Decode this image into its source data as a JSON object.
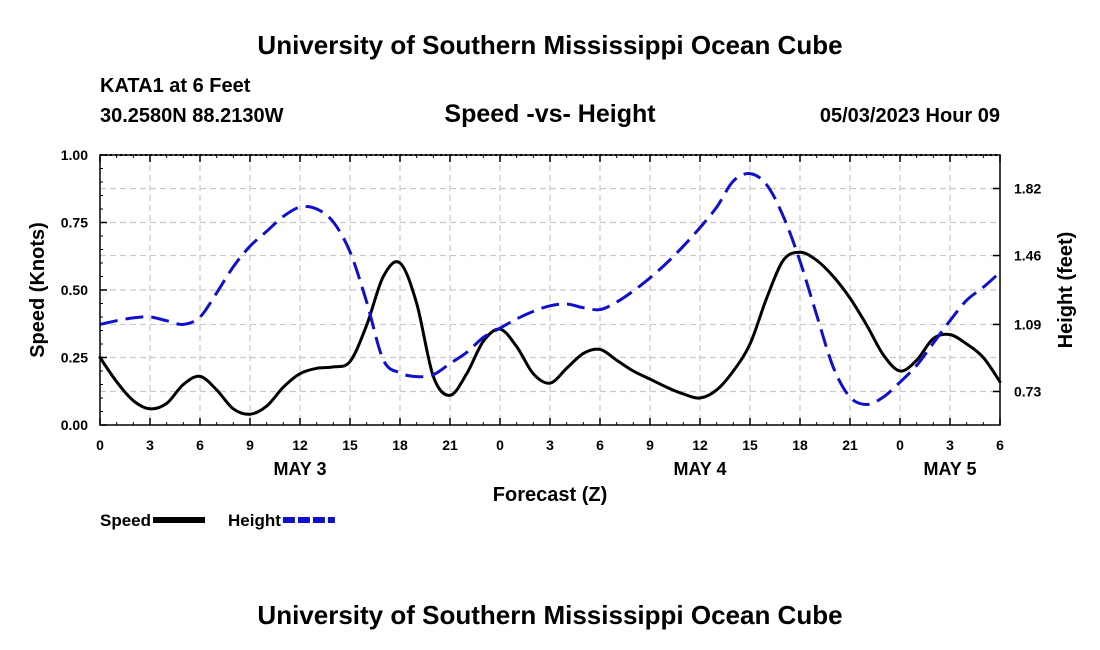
{
  "header": {
    "title": "University of Southern Mississippi Ocean Cube",
    "station": "KATA1 at 6 Feet",
    "coords": "30.2580N  88.2130W",
    "subtitle": "Speed -vs- Height",
    "datetime": "05/03/2023 Hour 09",
    "footer_title": "University of Southern Mississippi Ocean Cube"
  },
  "chart_data": {
    "type": "line",
    "title": "Speed -vs- Height",
    "xlabel": "Forecast (Z)",
    "ylabel": "Speed (Knots)",
    "y2label": "Height (feet)",
    "x_range": [
      0,
      54
    ],
    "ylim": [
      0,
      1
    ],
    "y2lim": [
      0.55,
      2.0
    ],
    "x_ticks": [
      0,
      3,
      6,
      9,
      12,
      15,
      18,
      21,
      24,
      27,
      30,
      33,
      36,
      39,
      42,
      45,
      48,
      51,
      54
    ],
    "x_tick_labels": [
      "0",
      "3",
      "6",
      "9",
      "12",
      "15",
      "18",
      "21",
      "0",
      "3",
      "6",
      "9",
      "12",
      "15",
      "18",
      "21",
      "0",
      "3",
      "6"
    ],
    "y_ticks": [
      0,
      0.25,
      0.5,
      0.75,
      1.0
    ],
    "y_tick_labels": [
      "0.00",
      "0.25",
      "0.50",
      "0.75",
      "1.00"
    ],
    "y2_ticks": [
      0.73,
      1.09,
      1.46,
      1.82
    ],
    "y2_tick_labels": [
      "0.73",
      "1.09",
      "1.46",
      "1.82"
    ],
    "day_labels": [
      {
        "x": 12,
        "label": "MAY 3"
      },
      {
        "x": 36,
        "label": "MAY 4"
      },
      {
        "x": 51,
        "label": "MAY 5"
      }
    ],
    "grid": true,
    "legend_position": "bottom-left",
    "series": [
      {
        "name": "Speed",
        "axis": "left",
        "color": "#000000",
        "dash": "solid",
        "points": [
          [
            0,
            0.25
          ],
          [
            1,
            0.16
          ],
          [
            2,
            0.09
          ],
          [
            3,
            0.06
          ],
          [
            4,
            0.08
          ],
          [
            5,
            0.15
          ],
          [
            6,
            0.18
          ],
          [
            7,
            0.13
          ],
          [
            8,
            0.06
          ],
          [
            9,
            0.04
          ],
          [
            10,
            0.07
          ],
          [
            11,
            0.14
          ],
          [
            12,
            0.19
          ],
          [
            13,
            0.21
          ],
          [
            14,
            0.215
          ],
          [
            15,
            0.235
          ],
          [
            16,
            0.37
          ],
          [
            17,
            0.55
          ],
          [
            18,
            0.6
          ],
          [
            19,
            0.45
          ],
          [
            20,
            0.18
          ],
          [
            21,
            0.11
          ],
          [
            22,
            0.19
          ],
          [
            23,
            0.31
          ],
          [
            24,
            0.355
          ],
          [
            25,
            0.29
          ],
          [
            26,
            0.19
          ],
          [
            27,
            0.155
          ],
          [
            28,
            0.21
          ],
          [
            29,
            0.265
          ],
          [
            30,
            0.28
          ],
          [
            31,
            0.24
          ],
          [
            32,
            0.2
          ],
          [
            33,
            0.17
          ],
          [
            34,
            0.14
          ],
          [
            35,
            0.115
          ],
          [
            36,
            0.1
          ],
          [
            37,
            0.13
          ],
          [
            38,
            0.2
          ],
          [
            39,
            0.3
          ],
          [
            40,
            0.47
          ],
          [
            41,
            0.61
          ],
          [
            42,
            0.64
          ],
          [
            43,
            0.61
          ],
          [
            44,
            0.55
          ],
          [
            45,
            0.47
          ],
          [
            46,
            0.37
          ],
          [
            47,
            0.26
          ],
          [
            48,
            0.2
          ],
          [
            49,
            0.24
          ],
          [
            50,
            0.32
          ],
          [
            51,
            0.335
          ],
          [
            52,
            0.3
          ],
          [
            53,
            0.25
          ],
          [
            54,
            0.16
          ]
        ]
      },
      {
        "name": "Height",
        "axis": "right",
        "color": "#1010cc",
        "dash": "dashed",
        "points": [
          [
            0,
            1.09
          ],
          [
            1,
            1.11
          ],
          [
            2,
            1.125
          ],
          [
            3,
            1.13
          ],
          [
            4,
            1.11
          ],
          [
            5,
            1.09
          ],
          [
            6,
            1.13
          ],
          [
            7,
            1.26
          ],
          [
            8,
            1.4
          ],
          [
            9,
            1.51
          ],
          [
            10,
            1.59
          ],
          [
            11,
            1.67
          ],
          [
            12,
            1.72
          ],
          [
            13,
            1.71
          ],
          [
            14,
            1.64
          ],
          [
            15,
            1.48
          ],
          [
            16,
            1.21
          ],
          [
            17,
            0.9
          ],
          [
            18,
            0.83
          ],
          [
            19,
            0.81
          ],
          [
            20,
            0.82
          ],
          [
            21,
            0.88
          ],
          [
            22,
            0.94
          ],
          [
            23,
            1.02
          ],
          [
            24,
            1.07
          ],
          [
            25,
            1.12
          ],
          [
            26,
            1.16
          ],
          [
            27,
            1.19
          ],
          [
            28,
            1.2
          ],
          [
            29,
            1.18
          ],
          [
            30,
            1.17
          ],
          [
            31,
            1.21
          ],
          [
            32,
            1.27
          ],
          [
            33,
            1.34
          ],
          [
            34,
            1.42
          ],
          [
            35,
            1.51
          ],
          [
            36,
            1.61
          ],
          [
            37,
            1.72
          ],
          [
            38,
            1.86
          ],
          [
            39,
            1.9
          ],
          [
            40,
            1.84
          ],
          [
            41,
            1.67
          ],
          [
            42,
            1.43
          ],
          [
            43,
            1.14
          ],
          [
            44,
            0.86
          ],
          [
            45,
            0.7
          ],
          [
            46,
            0.66
          ],
          [
            47,
            0.7
          ],
          [
            48,
            0.78
          ],
          [
            49,
            0.87
          ],
          [
            50,
            0.99
          ],
          [
            51,
            1.11
          ],
          [
            52,
            1.22
          ],
          [
            53,
            1.29
          ],
          [
            54,
            1.37
          ]
        ]
      }
    ]
  }
}
